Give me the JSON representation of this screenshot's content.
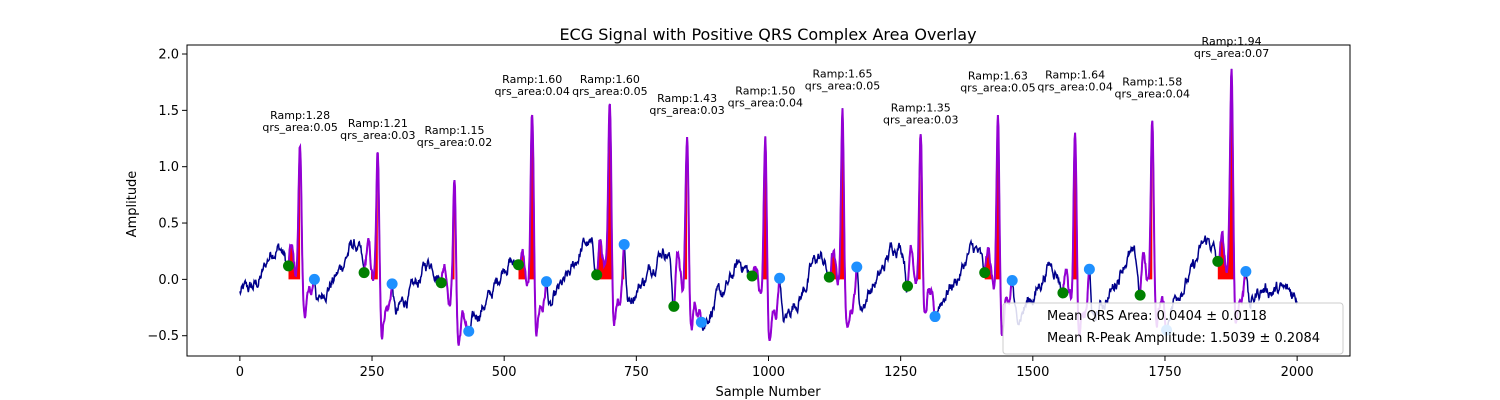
{
  "chart_data": {
    "type": "line",
    "title": "ECG Signal with Positive QRS Complex Area Overlay",
    "xlabel": "Sample Number",
    "ylabel": "Amplitude",
    "xlim": [
      -100,
      2100
    ],
    "ylim": [
      -0.68,
      2.08
    ],
    "xticks": [
      0,
      250,
      500,
      750,
      1000,
      1250,
      1500,
      1750,
      2000
    ],
    "yticks": [
      -0.5,
      0.0,
      0.5,
      1.0,
      1.5,
      2.0
    ],
    "xtick_labels": [
      "0",
      "250",
      "500",
      "750",
      "1000",
      "1250",
      "1500",
      "1750",
      "2000"
    ],
    "ytick_labels": [
      "−0.5",
      "0.0",
      "0.5",
      "1.0",
      "1.5",
      "2.0"
    ],
    "grid": false,
    "colors": {
      "signal": "#00008b",
      "qrs_segment": "#9400d3",
      "qrs_area": "#ff0000",
      "onset_marker": "#008000",
      "offset_marker": "#1e90ff"
    },
    "beats": [
      {
        "onset": 92,
        "peak": 114,
        "offset": 141,
        "ramp": 1.28,
        "onset_y": 0.12,
        "offset_y": 0.0,
        "area_start": 92,
        "area_end": 114,
        "ramp_label": "Ramp:1.28",
        "area_label": "qrs_area:0.05"
      },
      {
        "onset": 235,
        "peak": 261,
        "offset": 288,
        "ramp": 1.21,
        "onset_y": 0.06,
        "offset_y": -0.04,
        "area_start": 248,
        "area_end": 261,
        "ramp_label": "Ramp:1.21",
        "area_label": "qrs_area:0.03"
      },
      {
        "onset": 381,
        "peak": 406,
        "offset": 433,
        "ramp": 1.15,
        "onset_y": -0.03,
        "offset_y": -0.46,
        "area_start": 398,
        "area_end": 406,
        "ramp_label": "Ramp:1.15",
        "area_label": "qrs_area:0.02"
      },
      {
        "onset": 527,
        "peak": 553,
        "offset": 580,
        "ramp": 1.6,
        "onset_y": 0.13,
        "offset_y": -0.02,
        "area_start": 527,
        "area_end": 580,
        "ramp_label": "Ramp:1.60",
        "area_label": "qrs_area:0.04"
      },
      {
        "onset": 675,
        "peak": 700,
        "offset": 727,
        "ramp": 1.6,
        "onset_y": 0.04,
        "offset_y": 0.31,
        "area_start": 675,
        "area_end": 727,
        "ramp_label": "Ramp:1.60",
        "area_label": "qrs_area:0.05"
      },
      {
        "onset": 821,
        "peak": 846,
        "offset": 873,
        "ramp": 1.43,
        "onset_y": -0.24,
        "offset_y": -0.38,
        "area_start": 836,
        "area_end": 846,
        "ramp_label": "Ramp:1.43",
        "area_label": "qrs_area:0.03"
      },
      {
        "onset": 969,
        "peak": 994,
        "offset": 1021,
        "ramp": 1.5,
        "onset_y": 0.03,
        "offset_y": 0.01,
        "area_start": 969,
        "area_end": 1010,
        "ramp_label": "Ramp:1.50",
        "area_label": "qrs_area:0.04"
      },
      {
        "onset": 1115,
        "peak": 1140,
        "offset": 1167,
        "ramp": 1.65,
        "onset_y": 0.02,
        "offset_y": 0.11,
        "area_start": 1115,
        "area_end": 1167,
        "ramp_label": "Ramp:1.65",
        "area_label": "qrs_area:0.05"
      },
      {
        "onset": 1263,
        "peak": 1288,
        "offset": 1315,
        "ramp": 1.35,
        "onset_y": -0.06,
        "offset_y": -0.33,
        "area_start": 1278,
        "area_end": 1288,
        "ramp_label": "Ramp:1.35",
        "area_label": "qrs_area:0.03"
      },
      {
        "onset": 1409,
        "peak": 1434,
        "offset": 1461,
        "ramp": 1.63,
        "onset_y": 0.06,
        "offset_y": -0.01,
        "area_start": 1409,
        "area_end": 1461,
        "ramp_label": "Ramp:1.63",
        "area_label": "qrs_area:0.05"
      },
      {
        "onset": 1557,
        "peak": 1580,
        "offset": 1607,
        "ramp": 1.64,
        "onset_y": -0.12,
        "offset_y": 0.09,
        "area_start": 1570,
        "area_end": 1607,
        "ramp_label": "Ramp:1.64",
        "area_label": "qrs_area:0.04"
      },
      {
        "onset": 1703,
        "peak": 1726,
        "offset": 1753,
        "ramp": 1.58,
        "onset_y": -0.14,
        "offset_y": -0.45,
        "area_start": 1716,
        "area_end": 1726,
        "ramp_label": "Ramp:1.58",
        "area_label": "qrs_area:0.04"
      },
      {
        "onset": 1850,
        "peak": 1876,
        "offset": 1903,
        "ramp": 1.94,
        "onset_y": 0.16,
        "offset_y": 0.07,
        "area_start": 1850,
        "area_end": 1903,
        "ramp_label": "Ramp:1.94",
        "area_label": "qrs_area:0.07"
      }
    ],
    "legend": {
      "placement": "lower right",
      "entries": [
        "Mean QRS Area: 0.0404 ± 0.0118",
        "Mean R-Peak Amplitude: 1.5039 ± 0.2084"
      ]
    }
  }
}
